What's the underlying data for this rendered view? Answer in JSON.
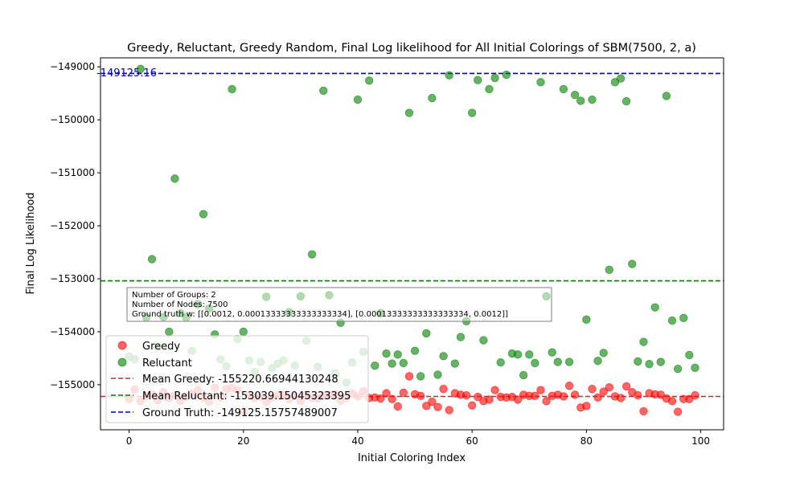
{
  "chart_data": {
    "type": "scatter",
    "title": "Greedy, Reluctant, Greedy Random, Final Log likelihood for All Initial Colorings of SBM(7500, 2, a)",
    "xlabel": "Initial Coloring Index",
    "ylabel": "Final Log Likelihood",
    "xlim": [
      -5,
      104
    ],
    "ylim": [
      -155850,
      -148830
    ],
    "xticks": [
      0,
      20,
      40,
      60,
      80,
      100
    ],
    "yticks": [
      -155000,
      -154000,
      -153000,
      -152000,
      -151000,
      -150000,
      -149000
    ],
    "xtick_labels": [
      "0",
      "20",
      "40",
      "60",
      "80",
      "100"
    ],
    "ytick_labels": [
      "−155000",
      "−154000",
      "−153000",
      "−152000",
      "−151000",
      "−150000",
      "−149000"
    ],
    "grid": false,
    "legend_position": "lower-left",
    "hlines": [
      {
        "name": "Mean Greedy: -155220.66944130248",
        "value": -155220.67,
        "color": "#d62728",
        "style": "dashed"
      },
      {
        "name": "Mean Reluctant: -153039.15045323395",
        "value": -153039.15,
        "color": "#007f00",
        "style": "dashed"
      },
      {
        "name": "Ground Truth: -149125.15757489007",
        "value": -149125.16,
        "color": "#0000bf",
        "style": "dashed"
      }
    ],
    "annotation_value": "-149125.16",
    "info_box": [
      "Number of Groups: 2",
      "Number of Nodes: 7500",
      "Ground truth w: [[0.0012, 0.00013333333333333334], [0.00013333333333333334, 0.0012]]"
    ],
    "series": [
      {
        "name": "Greedy",
        "color": "#ff0000",
        "x": [
          0,
          1,
          2,
          3,
          4,
          5,
          6,
          7,
          8,
          9,
          10,
          11,
          12,
          13,
          14,
          15,
          16,
          17,
          18,
          19,
          20,
          21,
          22,
          23,
          24,
          25,
          26,
          27,
          28,
          29,
          30,
          31,
          32,
          33,
          34,
          35,
          36,
          37,
          38,
          39,
          40,
          41,
          42,
          43,
          44,
          45,
          46,
          47,
          48,
          49,
          50,
          51,
          52,
          53,
          54,
          55,
          56,
          57,
          58,
          59,
          60,
          61,
          62,
          63,
          64,
          65,
          66,
          67,
          68,
          69,
          70,
          71,
          72,
          73,
          74,
          75,
          76,
          77,
          78,
          79,
          80,
          81,
          82,
          83,
          84,
          85,
          86,
          87,
          88,
          89,
          90,
          91,
          92,
          93,
          94,
          95,
          96,
          97,
          98,
          99
        ],
        "y": [
          -155270,
          -155090,
          -155310,
          -155220,
          -155180,
          -155290,
          -155140,
          -155250,
          -155200,
          -155300,
          -155230,
          -155170,
          -155100,
          -155250,
          -155320,
          -155060,
          -155240,
          -155080,
          -155060,
          -155100,
          -155510,
          -155200,
          -155250,
          -155220,
          -155320,
          -155240,
          -155200,
          -155190,
          -155270,
          -155210,
          -155310,
          -155190,
          -155250,
          -155260,
          -155200,
          -155210,
          -155180,
          -155300,
          -155240,
          -155160,
          -155220,
          -155120,
          -155250,
          -155240,
          -155260,
          -155160,
          -155270,
          -155410,
          -155150,
          -154840,
          -155180,
          -155210,
          -155400,
          -155320,
          -155420,
          -155080,
          -155480,
          -155160,
          -155190,
          -155200,
          -155390,
          -155230,
          -155310,
          -155280,
          -155100,
          -155230,
          -155240,
          -155230,
          -155280,
          -155190,
          -155210,
          -155210,
          -155100,
          -155310,
          -155210,
          -155190,
          -155220,
          -155020,
          -155190,
          -155430,
          -155400,
          -155080,
          -155240,
          -155130,
          -155050,
          -155220,
          -155250,
          -155030,
          -155140,
          -155200,
          -155500,
          -155160,
          -155180,
          -155190,
          -155260,
          -155310,
          -155510,
          -155270,
          -155270,
          -155200
        ]
      },
      {
        "name": "Reluctant",
        "color": "#008000",
        "x": [
          0,
          1,
          2,
          3,
          4,
          5,
          6,
          7,
          8,
          9,
          10,
          11,
          12,
          13,
          14,
          15,
          16,
          17,
          18,
          19,
          20,
          21,
          22,
          23,
          24,
          25,
          26,
          27,
          28,
          29,
          30,
          31,
          32,
          33,
          34,
          35,
          36,
          37,
          38,
          39,
          40,
          41,
          42,
          43,
          44,
          45,
          46,
          47,
          48,
          49,
          50,
          51,
          52,
          53,
          54,
          55,
          56,
          57,
          58,
          59,
          60,
          61,
          62,
          63,
          64,
          65,
          66,
          67,
          68,
          69,
          70,
          71,
          72,
          73,
          74,
          75,
          76,
          77,
          78,
          79,
          80,
          81,
          82,
          83,
          84,
          85,
          86,
          87,
          88,
          89,
          90,
          91,
          92,
          93,
          94,
          95,
          96,
          97,
          98,
          99
        ],
        "y": [
          -154470,
          -154520,
          -149040,
          -153730,
          -152630,
          -154290,
          -153720,
          -154000,
          -151110,
          -153650,
          -153730,
          -154360,
          -153480,
          -151780,
          -153560,
          -154050,
          -154520,
          -154650,
          -149420,
          -154140,
          -154000,
          -154540,
          -154760,
          -154570,
          -153340,
          -154690,
          -154600,
          -154540,
          -153630,
          -154640,
          -153330,
          -154170,
          -152540,
          -154660,
          -149450,
          -153310,
          -154780,
          -153830,
          -154960,
          -154580,
          -149620,
          -154380,
          -149260,
          -154640,
          -153650,
          -154410,
          -154600,
          -154430,
          -154590,
          -149870,
          -154360,
          -154840,
          -154030,
          -149590,
          -154810,
          -154460,
          -149160,
          -154600,
          -154100,
          -153800,
          -149870,
          -149250,
          -154160,
          -149420,
          -149210,
          -154580,
          -149150,
          -154410,
          -154430,
          -154820,
          -154430,
          -154590,
          -149290,
          -153330,
          -154390,
          -154570,
          -149420,
          -154570,
          -149530,
          -149640,
          -153770,
          -149620,
          -154550,
          -154400,
          -152830,
          -149290,
          -149220,
          -149650,
          -152720,
          -154560,
          -154190,
          -154610,
          -153540,
          -154570,
          -149550,
          -153790,
          -154700,
          -153740,
          -154440,
          -154680
        ]
      }
    ]
  }
}
